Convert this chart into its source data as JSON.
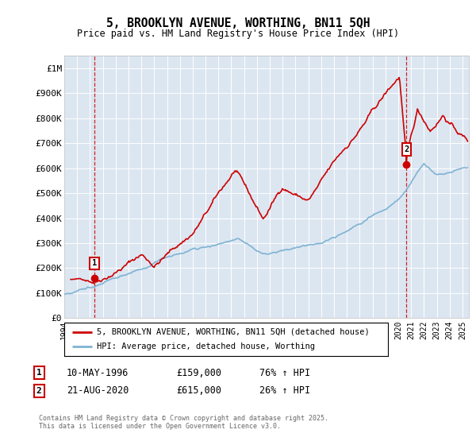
{
  "title": "5, BROOKLYN AVENUE, WORTHING, BN11 5QH",
  "subtitle": "Price paid vs. HM Land Registry's House Price Index (HPI)",
  "red_label": "5, BROOKLYN AVENUE, WORTHING, BN11 5QH (detached house)",
  "blue_label": "HPI: Average price, detached house, Worthing",
  "annotation1_date": "10-MAY-1996",
  "annotation1_price": "£159,000",
  "annotation1_hpi": "76% ↑ HPI",
  "annotation2_date": "21-AUG-2020",
  "annotation2_price": "£615,000",
  "annotation2_hpi": "26% ↑ HPI",
  "footer": "Contains HM Land Registry data © Crown copyright and database right 2025.\nThis data is licensed under the Open Government Licence v3.0.",
  "ylim": [
    0,
    1050000
  ],
  "xlim_start": 1994.0,
  "xlim_end": 2025.5,
  "bg_color": "#ffffff",
  "plot_bg_color": "#dce6f1",
  "grid_color": "#ffffff",
  "red_color": "#cc0000",
  "blue_color": "#7fb3d3",
  "point1_x": 1996.36,
  "point1_y": 159000,
  "point2_x": 2020.64,
  "point2_y": 615000
}
